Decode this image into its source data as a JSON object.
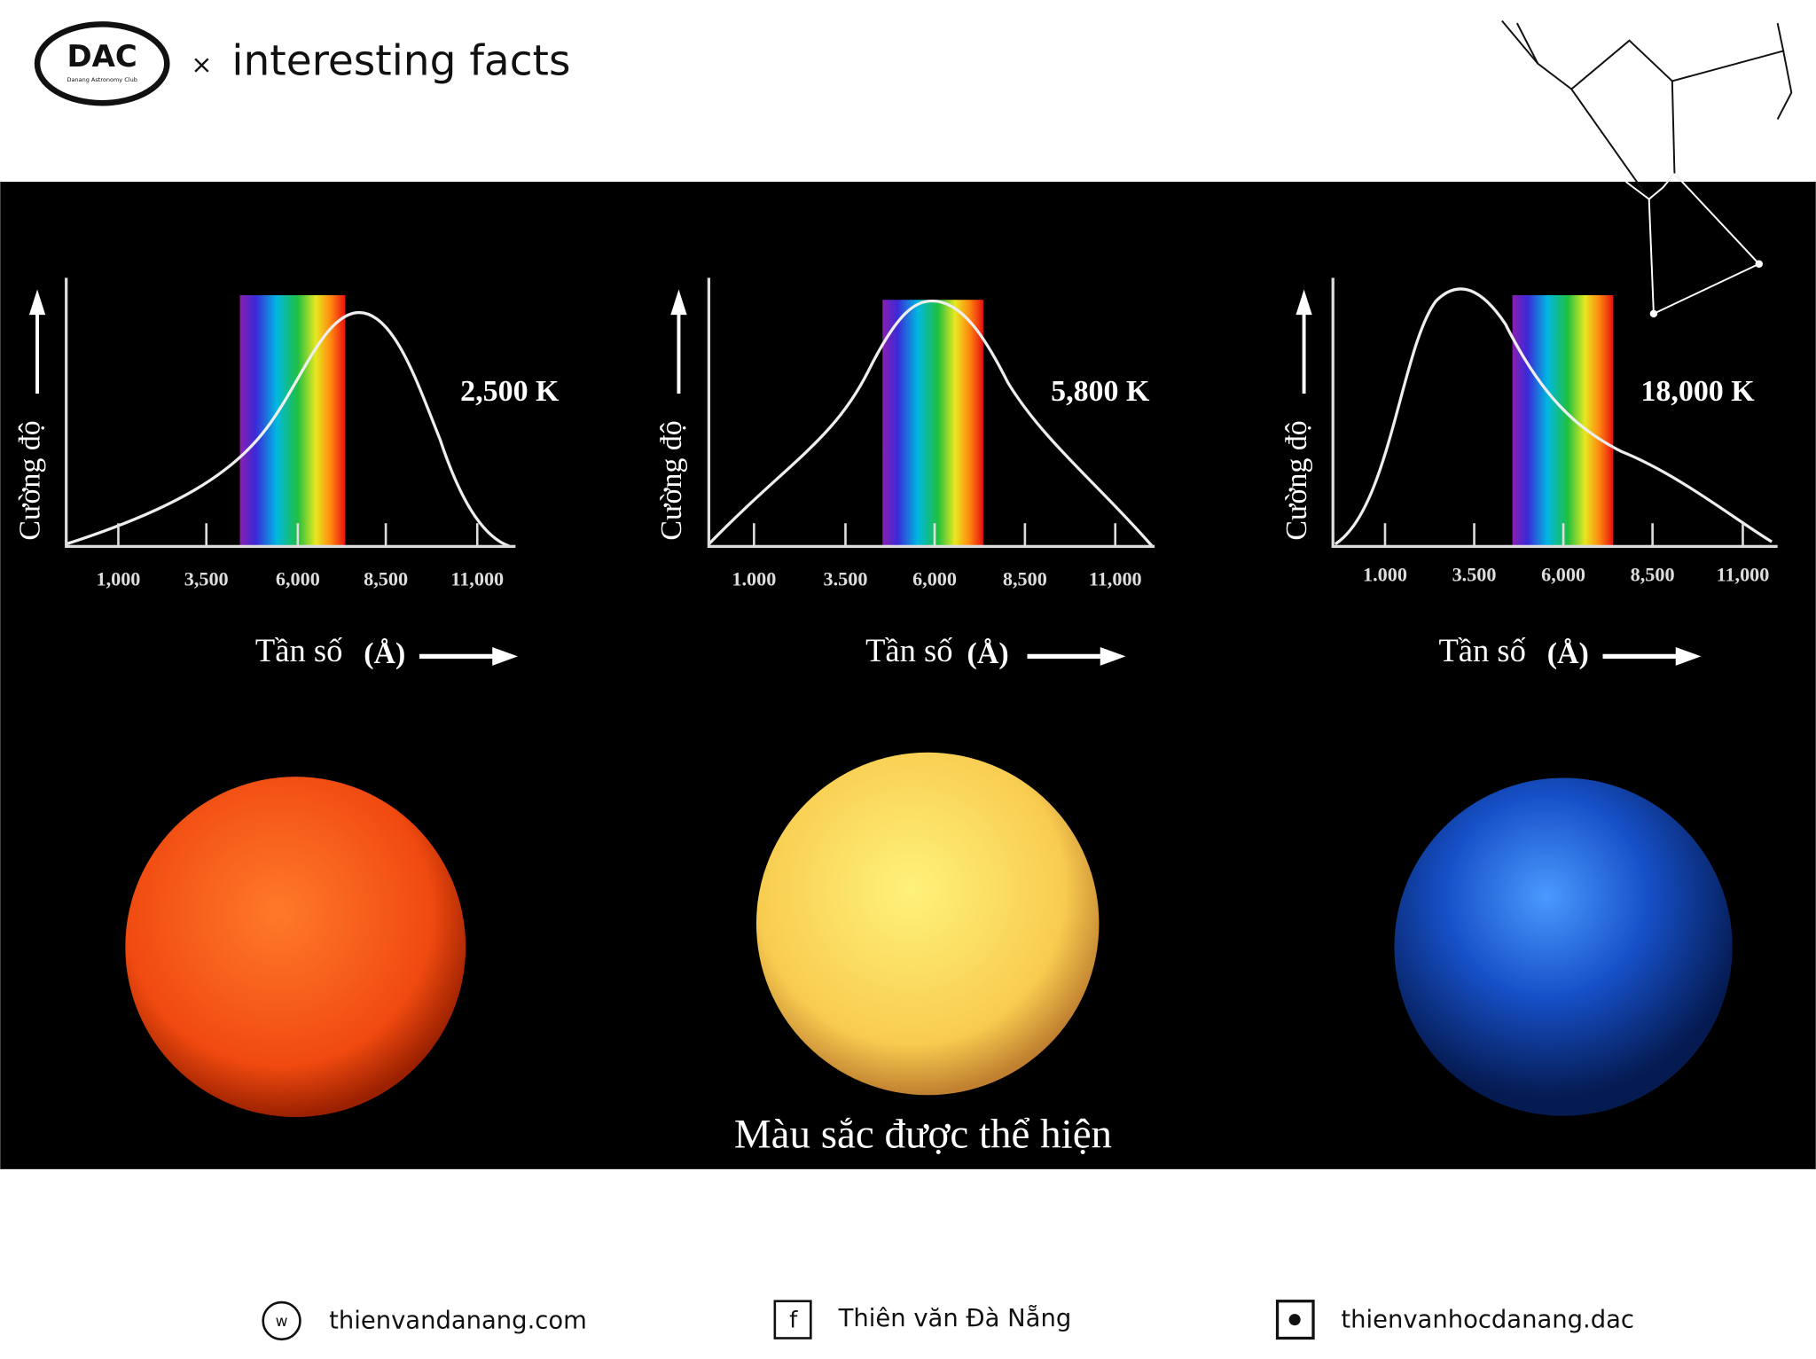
{
  "header": {
    "logo": "DAC",
    "logo_subtitle": "Danang Astronomy Club",
    "separator": "×",
    "title": "interesting facts"
  },
  "panels": [
    {
      "temperature": "2,500 K",
      "y_label": "Cường độ",
      "x_label": "Tần số",
      "x_unit": "(Å)",
      "x_ticks": [
        "1,000",
        "3,500",
        "6,000",
        "8,500",
        "11,000"
      ]
    },
    {
      "temperature": "5,800 K",
      "y_label": "Cường độ",
      "x_label": "Tần số",
      "x_unit": "(Å)",
      "x_ticks": [
        "1.000",
        "3.500",
        "6,000",
        "8,500",
        "11,000"
      ]
    },
    {
      "temperature": "18,000 K",
      "y_label": "Cường độ",
      "x_label": "Tần số",
      "x_unit": "(Å)",
      "x_ticks": [
        "1.000",
        "3.500",
        "6,000",
        "8,500",
        "11,000"
      ]
    }
  ],
  "caption": "Màu sắc được thể hiện",
  "footer": {
    "website_icon": "w",
    "website": "thienvandanang.com",
    "facebook_icon": "f",
    "facebook": "Thiên văn Đà Nẵng",
    "instagram": "thienvanhocdanang.dac"
  }
}
